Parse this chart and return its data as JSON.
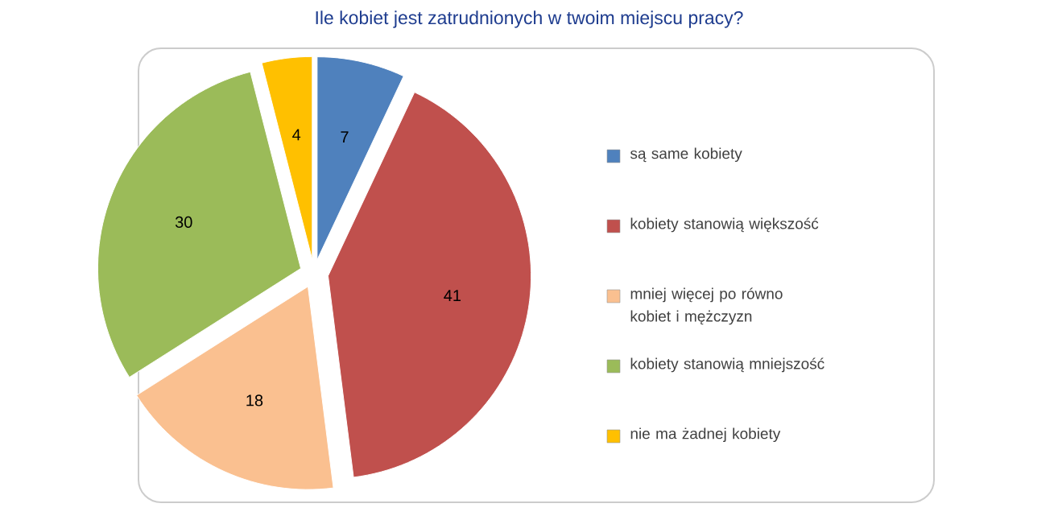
{
  "chart_data": {
    "type": "pie",
    "title": "Ile kobiet jest zatrudnionych w twoim miejscu pracy?",
    "categories": [
      "są same kobiety",
      "kobiety stanowią większość",
      "mniej więcej po równo kobiet i mężczyzn",
      "kobiety stanowią mniejszość",
      "nie ma żadnej kobiety"
    ],
    "values": [
      7,
      41,
      18,
      30,
      4
    ],
    "colors": [
      "#4f81bd",
      "#c0504d",
      "#fac090",
      "#9bbb59",
      "#ffc000"
    ],
    "data_labels": true,
    "legend": "right"
  }
}
